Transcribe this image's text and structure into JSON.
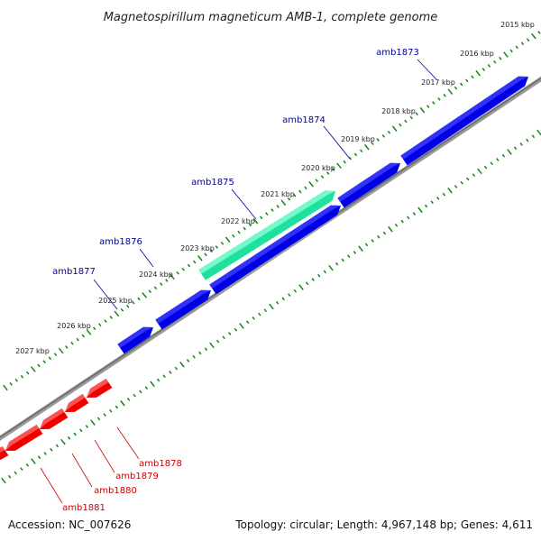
{
  "title": "Magnetospirillum magneticum AMB-1, complete genome",
  "footer": {
    "accession": "Accession: NC_007626",
    "topology": "Topology: circular; Length: 4,967,148 bp; Genes: 4,611"
  },
  "colors": {
    "forward_gene": "#0000e6",
    "forward_gene_top": "#3a3aff",
    "highlight_gene": "#20e0a0",
    "highlight_gene_top": "#80ffd0",
    "reverse_gene": "#ee0000",
    "reverse_gene_top": "#ff6060",
    "backbone": "#808080",
    "tick": "#118811",
    "forward_label": "#000099",
    "reverse_label": "#cc0000"
  },
  "ticks": [
    "2015 kbp",
    "2016 kbp",
    "2017 kbp",
    "2018 kbp",
    "2019 kbp",
    "2020 kbp",
    "2021 kbp",
    "2022 kbp",
    "2023 kbp",
    "2024 kbp",
    "2025 kbp",
    "2026 kbp",
    "2027 kbp"
  ],
  "genes": [
    {
      "name": "amb1873",
      "strand": "forward"
    },
    {
      "name": "amb1874",
      "strand": "forward"
    },
    {
      "name": "amb1875",
      "strand": "forward",
      "highlight": true
    },
    {
      "name": "amb1876",
      "strand": "forward"
    },
    {
      "name": "amb1877",
      "strand": "forward"
    },
    {
      "name": "amb1878",
      "strand": "reverse"
    },
    {
      "name": "amb1879",
      "strand": "reverse"
    },
    {
      "name": "amb1880",
      "strand": "reverse"
    },
    {
      "name": "amb1881",
      "strand": "reverse"
    }
  ]
}
